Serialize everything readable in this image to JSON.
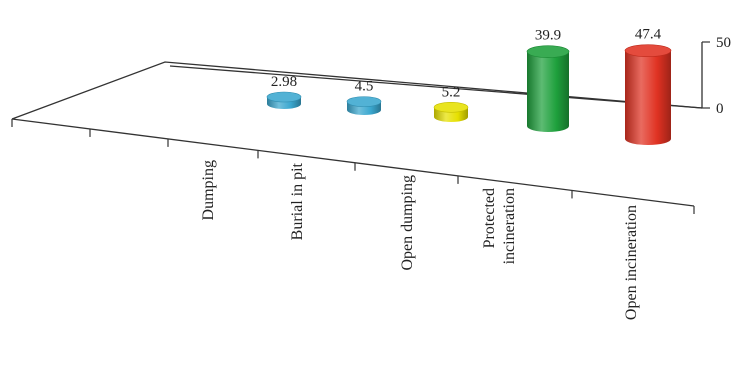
{
  "chart_data": {
    "type": "bar",
    "style": "3d-cylinder",
    "categories": [
      "Dumping",
      "Burial in pit",
      "Open dumping",
      "Protected incineration",
      "Open incineration"
    ],
    "category_label_lines": [
      [
        "Dumping"
      ],
      [
        "Burial in pit"
      ],
      [
        "Open dumping"
      ],
      [
        "Protected",
        "incineration"
      ],
      [
        "Open incineration"
      ]
    ],
    "values": [
      2.98,
      4.5,
      5.2,
      39.9,
      47.4
    ],
    "value_labels": [
      "2.98",
      "4.5",
      "5.2",
      "39.9",
      "47.4"
    ],
    "colors": [
      "#3aa7cf",
      "#3aa7cf",
      "#e6e000",
      "#1ea03c",
      "#e03222"
    ],
    "yticks": [
      0,
      50
    ],
    "ylim": [
      0,
      50
    ],
    "title": "",
    "xlabel": "",
    "ylabel": "",
    "legend": "none",
    "grid": false
  }
}
